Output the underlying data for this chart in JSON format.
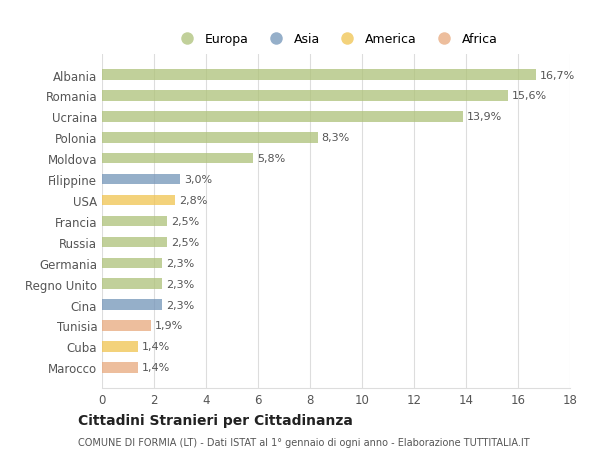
{
  "categories": [
    "Albania",
    "Romania",
    "Ucraina",
    "Polonia",
    "Moldova",
    "Filippine",
    "USA",
    "Francia",
    "Russia",
    "Germania",
    "Regno Unito",
    "Cina",
    "Tunisia",
    "Cuba",
    "Marocco"
  ],
  "values": [
    16.7,
    15.6,
    13.9,
    8.3,
    5.8,
    3.0,
    2.8,
    2.5,
    2.5,
    2.3,
    2.3,
    2.3,
    1.9,
    1.4,
    1.4
  ],
  "labels": [
    "16,7%",
    "15,6%",
    "13,9%",
    "8,3%",
    "5,8%",
    "3,0%",
    "2,8%",
    "2,5%",
    "2,5%",
    "2,3%",
    "2,3%",
    "2,3%",
    "1,9%",
    "1,4%",
    "1,4%"
  ],
  "continents": [
    "Europa",
    "Europa",
    "Europa",
    "Europa",
    "Europa",
    "Asia",
    "America",
    "Europa",
    "Europa",
    "Europa",
    "Europa",
    "Asia",
    "Africa",
    "America",
    "Africa"
  ],
  "colors": {
    "Europa": "#adc178",
    "Asia": "#7294b8",
    "America": "#f0c34f",
    "Africa": "#e8a87c"
  },
  "xlim": [
    0,
    18
  ],
  "xticks": [
    0,
    2,
    4,
    6,
    8,
    10,
    12,
    14,
    16,
    18
  ],
  "title": "Cittadini Stranieri per Cittadinanza",
  "subtitle": "COMUNE DI FORMIA (LT) - Dati ISTAT al 1° gennaio di ogni anno - Elaborazione TUTTITALIA.IT",
  "background_color": "#ffffff",
  "grid_color": "#dddddd",
  "bar_alpha": 0.75,
  "bar_height": 0.5
}
